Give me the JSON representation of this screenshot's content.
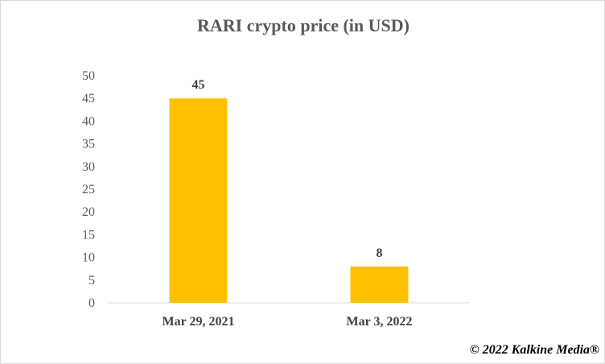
{
  "chart_data": {
    "type": "bar",
    "title": "RARI crypto price (in USD)",
    "categories": [
      "Mar 29, 2021",
      "Mar 3, 2022"
    ],
    "values": [
      45,
      8
    ],
    "data_labels": [
      "45",
      "8"
    ],
    "ylim": [
      0,
      50
    ],
    "yticks": [
      0,
      5,
      10,
      15,
      20,
      25,
      30,
      35,
      40,
      45,
      50
    ],
    "grid": false,
    "legend": "none",
    "bar_color": "#FFC000",
    "axis_color": "#D9D9D9"
  },
  "footer": {
    "copyright": "© 2022 Kalkine Media®"
  }
}
